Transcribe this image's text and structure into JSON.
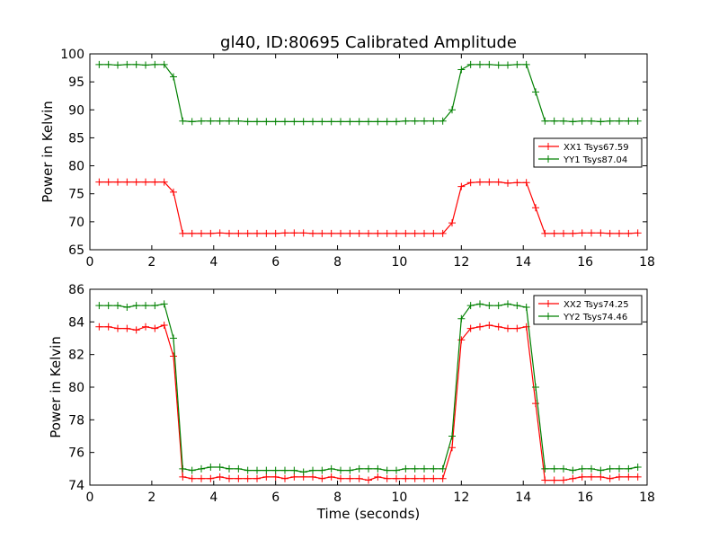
{
  "figure_title": "gl40, ID:80695 Calibrated Amplitude",
  "chart_data": [
    {
      "type": "line",
      "xlabel": "",
      "ylabel": "Power in Kelvin",
      "xlim": [
        0,
        18
      ],
      "ylim": [
        65,
        100
      ],
      "xticks": [
        "0",
        "2",
        "4",
        "6",
        "8",
        "10",
        "12",
        "14",
        "16",
        "18"
      ],
      "yticks": [
        "65",
        "70",
        "75",
        "80",
        "85",
        "90",
        "95",
        "100"
      ],
      "legend_position": "center-right",
      "x": [
        0.3,
        0.6,
        0.9,
        1.2,
        1.5,
        1.8,
        2.1,
        2.4,
        2.7,
        3.0,
        3.3,
        3.6,
        3.9,
        4.2,
        4.5,
        4.8,
        5.1,
        5.4,
        5.7,
        6.0,
        6.3,
        6.6,
        6.9,
        7.2,
        7.5,
        7.8,
        8.1,
        8.4,
        8.7,
        9.0,
        9.3,
        9.6,
        9.9,
        10.2,
        10.5,
        10.8,
        11.1,
        11.4,
        11.7,
        12.0,
        12.3,
        12.6,
        12.9,
        13.2,
        13.5,
        13.8,
        14.1,
        14.4,
        14.7,
        15.0,
        15.3,
        15.6,
        15.9,
        16.2,
        16.5,
        16.8,
        17.1,
        17.4,
        17.7
      ],
      "series": [
        {
          "name": "XX1 Tsys67.59",
          "color": "#ff0000",
          "values": [
            77.1,
            77.1,
            77.1,
            77.1,
            77.1,
            77.1,
            77.1,
            77.1,
            75.3,
            67.9,
            67.9,
            67.9,
            67.9,
            68.0,
            67.9,
            67.9,
            67.9,
            67.9,
            67.9,
            67.9,
            68.0,
            68.0,
            68.0,
            67.9,
            67.9,
            67.9,
            67.9,
            67.9,
            67.9,
            67.9,
            67.9,
            67.9,
            67.9,
            67.9,
            67.9,
            67.9,
            67.9,
            67.9,
            69.8,
            76.3,
            77.0,
            77.1,
            77.1,
            77.1,
            76.9,
            77.0,
            77.0,
            72.5,
            67.9,
            67.9,
            67.9,
            67.9,
            68.0,
            68.0,
            68.0,
            67.9,
            67.9,
            67.9,
            68.0
          ]
        },
        {
          "name": "YY1 Tsys87.04",
          "color": "#008000",
          "values": [
            98.1,
            98.1,
            98.0,
            98.1,
            98.1,
            98.0,
            98.1,
            98.1,
            95.9,
            88.0,
            87.9,
            88.0,
            88.0,
            88.0,
            88.0,
            88.0,
            87.9,
            87.9,
            87.9,
            87.9,
            87.9,
            87.9,
            87.9,
            87.9,
            87.9,
            87.9,
            87.9,
            87.9,
            87.9,
            87.9,
            87.9,
            87.9,
            87.9,
            88.0,
            88.0,
            88.0,
            88.0,
            88.0,
            90.0,
            97.2,
            98.1,
            98.1,
            98.1,
            98.0,
            98.0,
            98.1,
            98.1,
            93.2,
            88.0,
            88.0,
            88.0,
            87.9,
            88.0,
            88.0,
            87.9,
            88.0,
            88.0,
            88.0,
            88.0
          ]
        }
      ]
    },
    {
      "type": "line",
      "xlabel": "Time (seconds)",
      "ylabel": "Power in Kelvin",
      "xlim": [
        0,
        18
      ],
      "ylim": [
        74,
        86
      ],
      "xticks": [
        "0",
        "2",
        "4",
        "6",
        "8",
        "10",
        "12",
        "14",
        "16",
        "18"
      ],
      "yticks": [
        "74",
        "76",
        "78",
        "80",
        "82",
        "84",
        "86"
      ],
      "legend_position": "top-right",
      "x": [
        0.3,
        0.6,
        0.9,
        1.2,
        1.5,
        1.8,
        2.1,
        2.4,
        2.7,
        3.0,
        3.3,
        3.6,
        3.9,
        4.2,
        4.5,
        4.8,
        5.1,
        5.4,
        5.7,
        6.0,
        6.3,
        6.6,
        6.9,
        7.2,
        7.5,
        7.8,
        8.1,
        8.4,
        8.7,
        9.0,
        9.3,
        9.6,
        9.9,
        10.2,
        10.5,
        10.8,
        11.1,
        11.4,
        11.7,
        12.0,
        12.3,
        12.6,
        12.9,
        13.2,
        13.5,
        13.8,
        14.1,
        14.4,
        14.7,
        15.0,
        15.3,
        15.6,
        15.9,
        16.2,
        16.5,
        16.8,
        17.1,
        17.4,
        17.7
      ],
      "series": [
        {
          "name": "XX2 Tsys74.25",
          "color": "#ff0000",
          "values": [
            83.7,
            83.7,
            83.6,
            83.6,
            83.5,
            83.7,
            83.6,
            83.8,
            81.9,
            74.5,
            74.4,
            74.4,
            74.4,
            74.5,
            74.4,
            74.4,
            74.4,
            74.4,
            74.5,
            74.5,
            74.4,
            74.5,
            74.5,
            74.5,
            74.4,
            74.5,
            74.4,
            74.4,
            74.4,
            74.3,
            74.5,
            74.4,
            74.4,
            74.4,
            74.4,
            74.4,
            74.4,
            74.4,
            76.3,
            82.9,
            83.6,
            83.7,
            83.8,
            83.7,
            83.6,
            83.6,
            83.7,
            79.0,
            74.3,
            74.3,
            74.3,
            74.4,
            74.5,
            74.5,
            74.5,
            74.4,
            74.5,
            74.5,
            74.5
          ]
        },
        {
          "name": "YY2 Tsys74.46",
          "color": "#008000",
          "values": [
            85.0,
            85.0,
            85.0,
            84.9,
            85.0,
            85.0,
            85.0,
            85.1,
            83.0,
            75.0,
            74.9,
            75.0,
            75.1,
            75.1,
            75.0,
            75.0,
            74.9,
            74.9,
            74.9,
            74.9,
            74.9,
            74.9,
            74.8,
            74.9,
            74.9,
            75.0,
            74.9,
            74.9,
            75.0,
            75.0,
            75.0,
            74.9,
            74.9,
            75.0,
            75.0,
            75.0,
            75.0,
            75.0,
            77.0,
            84.2,
            85.0,
            85.1,
            85.0,
            85.0,
            85.1,
            85.0,
            84.9,
            80.0,
            75.0,
            75.0,
            75.0,
            74.9,
            75.0,
            75.0,
            74.9,
            75.0,
            75.0,
            75.0,
            75.1
          ]
        }
      ]
    }
  ]
}
